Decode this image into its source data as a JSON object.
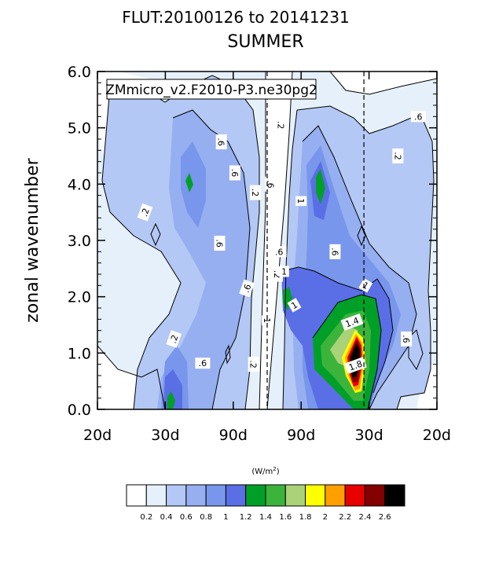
{
  "chart_data": {
    "type": "heatmap",
    "title": "FLUT:20100126 to 20141231",
    "subtitle": "SUMMER",
    "model_label": "ZMmicro_v2.F2010-P3.ne30pg2",
    "ylabel": "zonal wavenumber",
    "ylim": [
      0,
      6
    ],
    "yticks": [
      "0.0",
      "1.0",
      "2.0",
      "3.0",
      "4.0",
      "5.0",
      "6.0"
    ],
    "xticks": [
      "20d",
      "30d",
      "90d",
      "90d",
      "30d",
      "20d"
    ],
    "colorbar": {
      "units_prefix": "(W/m",
      "units_sup": "2",
      "units_suffix": ")",
      "levels": [
        "0.2",
        "0.4",
        "0.6",
        "0.8",
        "1",
        "1.2",
        "1.4",
        "1.6",
        "1.8",
        "2",
        "2.2",
        "2.4",
        "2.6"
      ],
      "colors": [
        "#ffffff",
        "#e6f0fa",
        "#b4c8f5",
        "#96aff0",
        "#7896eb",
        "#5a6ee6",
        "#00a028",
        "#3cb43c",
        "#aad278",
        "#ffff00",
        "#ffa000",
        "#e60000",
        "#820000",
        "#000000"
      ]
    },
    "contour_labels": [
      {
        "text": ".2",
        "x": -0.72,
        "y": 3.5,
        "rot": -70
      },
      {
        "text": ".2",
        "x": -0.55,
        "y": 1.25,
        "rot": -70
      },
      {
        "text": ".6",
        "x": -0.27,
        "y": 4.75,
        "rot": 90
      },
      {
        "text": ".6",
        "x": -0.28,
        "y": 2.95,
        "rot": 90
      },
      {
        "text": ".6",
        "x": -0.19,
        "y": 4.2,
        "rot": 90
      },
      {
        "text": ".6",
        "x": -0.12,
        "y": 2.15,
        "rot": -70
      },
      {
        "text": ".6",
        "x": -0.38,
        "y": 0.82,
        "rot": 0
      },
      {
        "text": ".2",
        "x": -0.07,
        "y": 3.85,
        "rot": 90
      },
      {
        "text": ".2",
        "x": -0.08,
        "y": 0.8,
        "rot": 90
      },
      {
        "text": ".2",
        "x": 0.06,
        "y": 2.4,
        "rot": 90
      },
      {
        "text": ".2",
        "x": 0.08,
        "y": 5.05,
        "rot": 90
      },
      {
        "text": ".6",
        "x": 0.02,
        "y": 4.0,
        "rot": 90
      },
      {
        "text": ".6",
        "x": 0.07,
        "y": 2.8,
        "rot": 0
      },
      {
        "text": "1",
        "x": 0.1,
        "y": 2.45,
        "rot": 0
      },
      {
        "text": "1",
        "x": 0.0,
        "y": 1.58,
        "rot": 90
      },
      {
        "text": "1",
        "x": 0.16,
        "y": 1.85,
        "rot": -30
      },
      {
        "text": "1",
        "x": 0.2,
        "y": 3.7,
        "rot": 90
      },
      {
        "text": ".6",
        "x": 0.4,
        "y": 2.8,
        "rot": 90
      },
      {
        "text": "1",
        "x": 0.58,
        "y": 2.2,
        "rot": 30
      },
      {
        "text": "1.4",
        "x": 0.5,
        "y": 1.55,
        "rot": -20
      },
      {
        "text": "1.8",
        "x": 0.52,
        "y": 0.78,
        "rot": -20
      },
      {
        "text": ".6",
        "x": 0.82,
        "y": 1.25,
        "rot": 90
      },
      {
        "text": ".2",
        "x": 0.77,
        "y": 4.5,
        "rot": 90
      },
      {
        "text": ".6",
        "x": 0.89,
        "y": 5.2,
        "rot": 0
      }
    ],
    "reference_lines_at": [
      0.0,
      0.57
    ],
    "x_range": [
      -1.0,
      1.0
    ],
    "grid": false
  }
}
